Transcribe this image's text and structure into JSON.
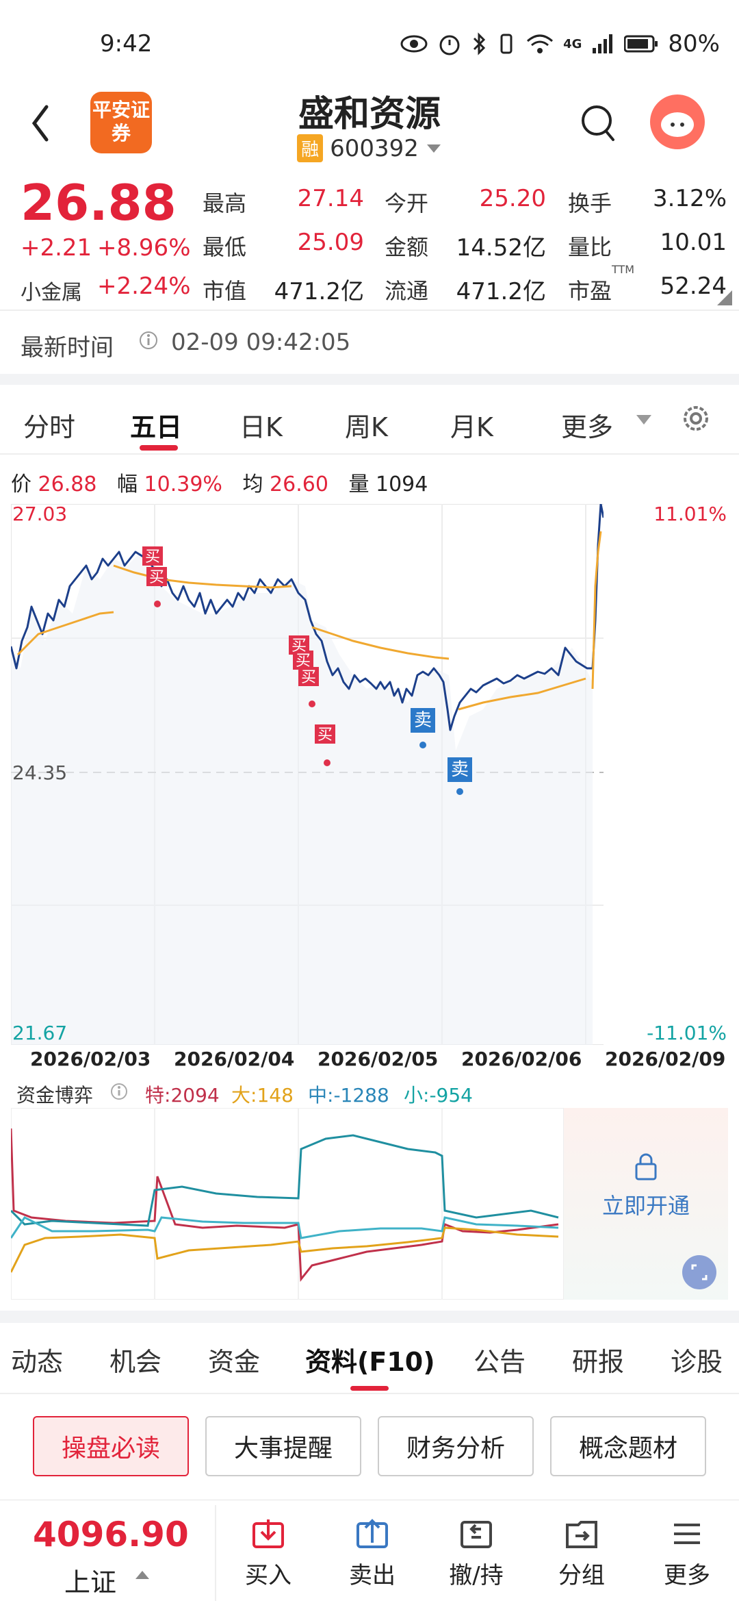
{
  "status": {
    "time": "9:42",
    "battery": "80%",
    "net": "4G"
  },
  "header": {
    "title": "盛和资源",
    "rong": "融",
    "code": "600392",
    "logo_text": "平安证券"
  },
  "quote": {
    "price": "26.88",
    "change": "+2.21",
    "change_pct": "+8.96%",
    "sector": "小金属",
    "sector_pct": "+2.24%",
    "high_label": "最高",
    "high": "27.14",
    "low_label": "最低",
    "low": "25.09",
    "mcap_label": "市值",
    "mcap": "471.2亿",
    "open_label": "今开",
    "open": "25.20",
    "amount_label": "金额",
    "amount": "14.52亿",
    "float_label": "流通",
    "float": "471.2亿",
    "turnover_label": "换手",
    "turnover": "3.12%",
    "ratio_label": "量比",
    "ratio": "10.01",
    "pe_label": "市盈",
    "pe_sup": "TTM",
    "pe": "52.24"
  },
  "update": {
    "label": "最新时间",
    "time": "02-09 09:42:05"
  },
  "tabs": [
    "分时",
    "五日",
    "日K",
    "周K",
    "月K",
    "更多"
  ],
  "info": {
    "price_label": "价",
    "price": "26.88",
    "amp_label": "幅",
    "amp": "10.39%",
    "avg_label": "均",
    "avg": "26.60",
    "vol_label": "量",
    "vol": "1094"
  },
  "chart_data": {
    "type": "line",
    "y_top": "27.03",
    "y_mid": "24.35",
    "y_bottom": "21.67",
    "pct_top": "11.01%",
    "pct_bottom": "-11.01%",
    "dates": [
      "2026/02/03",
      "2026/02/04",
      "2026/02/05",
      "2026/02/06",
      "2026/02/09"
    ],
    "markers": [
      {
        "text": "买",
        "kind": "buy"
      },
      {
        "text": "买",
        "kind": "buy"
      },
      {
        "text": "买",
        "kind": "buy"
      },
      {
        "text": "买",
        "kind": "buy"
      },
      {
        "text": "买",
        "kind": "buy"
      },
      {
        "text": "买",
        "kind": "buy"
      },
      {
        "text": "卖",
        "kind": "sell"
      },
      {
        "text": "卖",
        "kind": "sell"
      }
    ]
  },
  "flow": {
    "title": "资金博弈",
    "te_label": "特:",
    "te": "2094",
    "da_label": "大:",
    "da": "148",
    "zhong_label": "中:",
    "zhong": "-1288",
    "xiao_label": "小:",
    "xiao": "-954",
    "unlock": "立即开通"
  },
  "section_tabs": [
    "动态",
    "机会",
    "资金",
    "资料(F10)",
    "公告",
    "研报",
    "诊股"
  ],
  "tag_buttons": [
    "操盘必读",
    "大事提醒",
    "财务分析",
    "概念题材"
  ],
  "bottom": {
    "index_value": "4096.90",
    "index_name": "上证",
    "items": [
      "买入",
      "卖出",
      "撤/持",
      "分组",
      "更多"
    ]
  }
}
